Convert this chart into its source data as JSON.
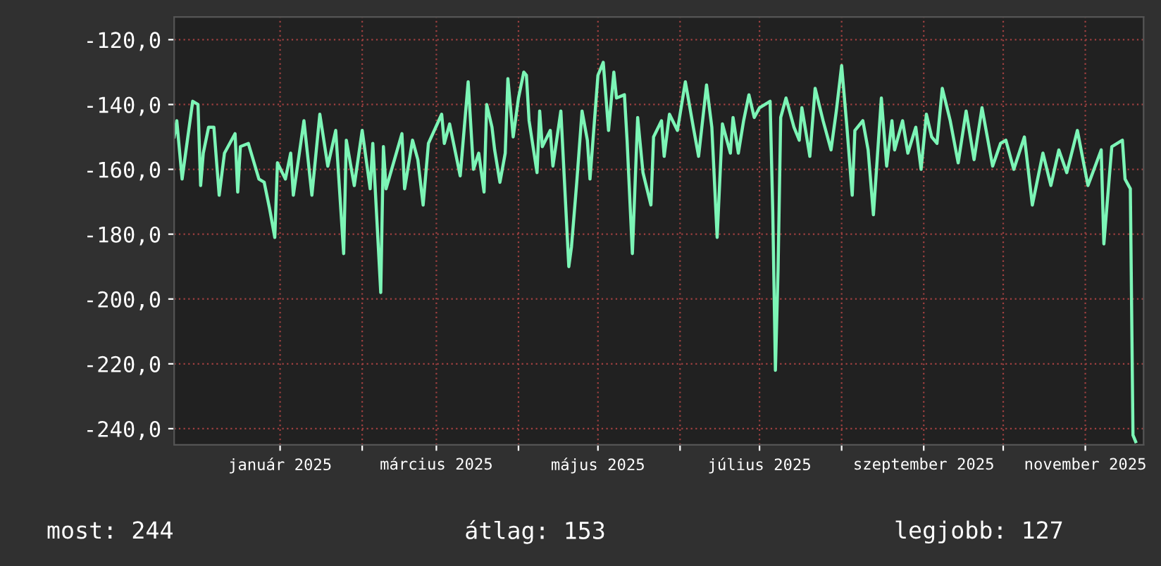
{
  "chart_data": {
    "type": "line",
    "x": [
      "2024-11-22",
      "2024-11-23",
      "2024-11-25",
      "2024-11-27",
      "2024-11-29",
      "2024-12-01",
      "2024-12-02",
      "2024-12-03",
      "2024-12-05",
      "2024-12-07",
      "2024-12-09",
      "2024-12-11",
      "2024-12-15",
      "2024-12-16",
      "2024-12-17",
      "2024-12-20",
      "2024-12-24",
      "2024-12-26",
      "2024-12-28",
      "2024-12-30",
      "2024-12-31",
      "2025-01-03",
      "2025-01-05",
      "2025-01-06",
      "2025-01-10",
      "2025-01-13",
      "2025-01-16",
      "2025-01-19",
      "2025-01-22",
      "2025-01-25",
      "2025-01-26",
      "2025-01-29",
      "2025-02-01",
      "2025-02-04",
      "2025-02-05",
      "2025-02-08",
      "2025-02-09",
      "2025-02-10",
      "2025-02-16",
      "2025-02-17",
      "2025-02-20",
      "2025-02-22",
      "2025-02-24",
      "2025-02-26",
      "2025-03-03",
      "2025-03-04",
      "2025-03-06",
      "2025-03-10",
      "2025-03-13",
      "2025-03-15",
      "2025-03-17",
      "2025-03-19",
      "2025-03-20",
      "2025-03-22",
      "2025-03-23",
      "2025-03-25",
      "2025-03-27",
      "2025-03-28",
      "2025-03-30",
      "2025-04-01",
      "2025-04-03",
      "2025-04-04",
      "2025-04-05",
      "2025-04-08",
      "2025-04-09",
      "2025-04-10",
      "2025-04-13",
      "2025-04-14",
      "2025-04-17",
      "2025-04-20",
      "2025-04-21",
      "2025-04-23",
      "2025-04-25",
      "2025-04-27",
      "2025-04-28",
      "2025-05-01",
      "2025-05-03",
      "2025-05-05",
      "2025-05-07",
      "2025-05-08",
      "2025-05-11",
      "2025-05-12",
      "2025-05-14",
      "2025-05-16",
      "2025-05-18",
      "2025-05-21",
      "2025-05-22",
      "2025-05-25",
      "2025-05-26",
      "2025-05-28",
      "2025-05-31",
      "2025-06-03",
      "2025-06-06",
      "2025-06-08",
      "2025-06-11",
      "2025-06-13",
      "2025-06-15",
      "2025-06-17",
      "2025-06-20",
      "2025-06-21",
      "2025-06-23",
      "2025-06-25",
      "2025-06-27",
      "2025-06-29",
      "2025-07-01",
      "2025-07-05",
      "2025-07-06",
      "2025-07-07",
      "2025-07-08",
      "2025-07-09",
      "2025-07-11",
      "2025-07-14",
      "2025-07-16",
      "2025-07-17",
      "2025-07-20",
      "2025-07-22",
      "2025-07-25",
      "2025-07-28",
      "2025-07-30",
      "2025-08-01",
      "2025-08-03",
      "2025-08-05",
      "2025-08-06",
      "2025-08-09",
      "2025-08-11",
      "2025-08-13",
      "2025-08-16",
      "2025-08-18",
      "2025-08-20",
      "2025-08-21",
      "2025-08-24",
      "2025-08-26",
      "2025-08-29",
      "2025-08-31",
      "2025-09-02",
      "2025-09-04",
      "2025-09-06",
      "2025-09-08",
      "2025-09-11",
      "2025-09-14",
      "2025-09-17",
      "2025-09-20",
      "2025-09-23",
      "2025-09-27",
      "2025-09-30",
      "2025-10-02",
      "2025-10-05",
      "2025-10-09",
      "2025-10-12",
      "2025-10-16",
      "2025-10-19",
      "2025-10-22",
      "2025-10-25",
      "2025-10-29",
      "2025-11-02",
      "2025-11-07",
      "2025-11-08",
      "2025-11-11",
      "2025-11-15",
      "2025-11-16",
      "2025-11-18",
      "2025-11-19",
      "2025-11-20"
    ],
    "series": [
      {
        "color": "#7cf5b6",
        "values": [
          -150,
          -145,
          -163,
          -151,
          -139,
          -140,
          -165,
          -155,
          -147,
          -147,
          -168,
          -155,
          -149,
          -167,
          -153,
          -152,
          -163,
          -164,
          -172,
          -181,
          -158,
          -163,
          -155,
          -168,
          -145,
          -168,
          -143,
          -159,
          -148,
          -186,
          -151,
          -165,
          -148,
          -166,
          -152,
          -198,
          -153,
          -166,
          -149,
          -166,
          -151,
          -157,
          -171,
          -152,
          -143,
          -152,
          -146,
          -162,
          -133,
          -160,
          -155,
          -167,
          -140,
          -147,
          -154,
          -164,
          -155,
          -132,
          -150,
          -138,
          -130,
          -131,
          -145,
          -161,
          -142,
          -153,
          -148,
          -159,
          -142,
          -190,
          -184,
          -164,
          -142,
          -151,
          -163,
          -131,
          -127,
          -148,
          -130,
          -138,
          -137,
          -151,
          -186,
          -144,
          -161,
          -171,
          -150,
          -145,
          -156,
          -143,
          -148,
          -133,
          -147,
          -156,
          -134,
          -147,
          -181,
          -146,
          -155,
          -144,
          -155,
          -145,
          -137,
          -144,
          -141,
          -139,
          -173,
          -222,
          -191,
          -144,
          -138,
          -147,
          -151,
          -141,
          -156,
          -135,
          -145,
          -154,
          -142,
          -128,
          -147,
          -168,
          -148,
          -145,
          -154,
          -174,
          -138,
          -159,
          -145,
          -154,
          -145,
          -155,
          -147,
          -160,
          -143,
          -150,
          -152,
          -135,
          -145,
          -158,
          -142,
          -157,
          -141,
          -159,
          -152,
          -151,
          -160,
          -150,
          -171,
          -155,
          -165,
          -154,
          -161,
          -148,
          -165,
          -154,
          -183,
          -153,
          -151,
          -163,
          -166,
          -242,
          -244
        ]
      }
    ],
    "xlim": [
      "2024-11-22",
      "2025-11-23"
    ],
    "xticks": [
      {
        "value": "2025-01-01",
        "label": "január 2025"
      },
      {
        "value": "2025-02-01",
        "label": null
      },
      {
        "value": "2025-03-01",
        "label": "március 2025"
      },
      {
        "value": "2025-04-01",
        "label": null
      },
      {
        "value": "2025-05-01",
        "label": "május 2025"
      },
      {
        "value": "2025-06-01",
        "label": null
      },
      {
        "value": "2025-07-01",
        "label": "július 2025"
      },
      {
        "value": "2025-08-01",
        "label": null
      },
      {
        "value": "2025-09-01",
        "label": "szeptember 2025"
      },
      {
        "value": "2025-10-01",
        "label": null
      },
      {
        "value": "2025-11-01",
        "label": "november 2025"
      }
    ],
    "ylim": [
      -245,
      -113
    ],
    "yticks": [
      {
        "value": -120,
        "label": "-120,0"
      },
      {
        "value": -140,
        "label": "-140,0"
      },
      {
        "value": -160,
        "label": "-160,0"
      },
      {
        "value": -180,
        "label": "-180,0"
      },
      {
        "value": -200,
        "label": "-200,0"
      },
      {
        "value": -220,
        "label": "-220,0"
      },
      {
        "value": -240,
        "label": "-240,0"
      }
    ],
    "grid": true,
    "annotations": [
      "most: 244",
      "átlag: 153",
      "legjobb: 127"
    ]
  }
}
